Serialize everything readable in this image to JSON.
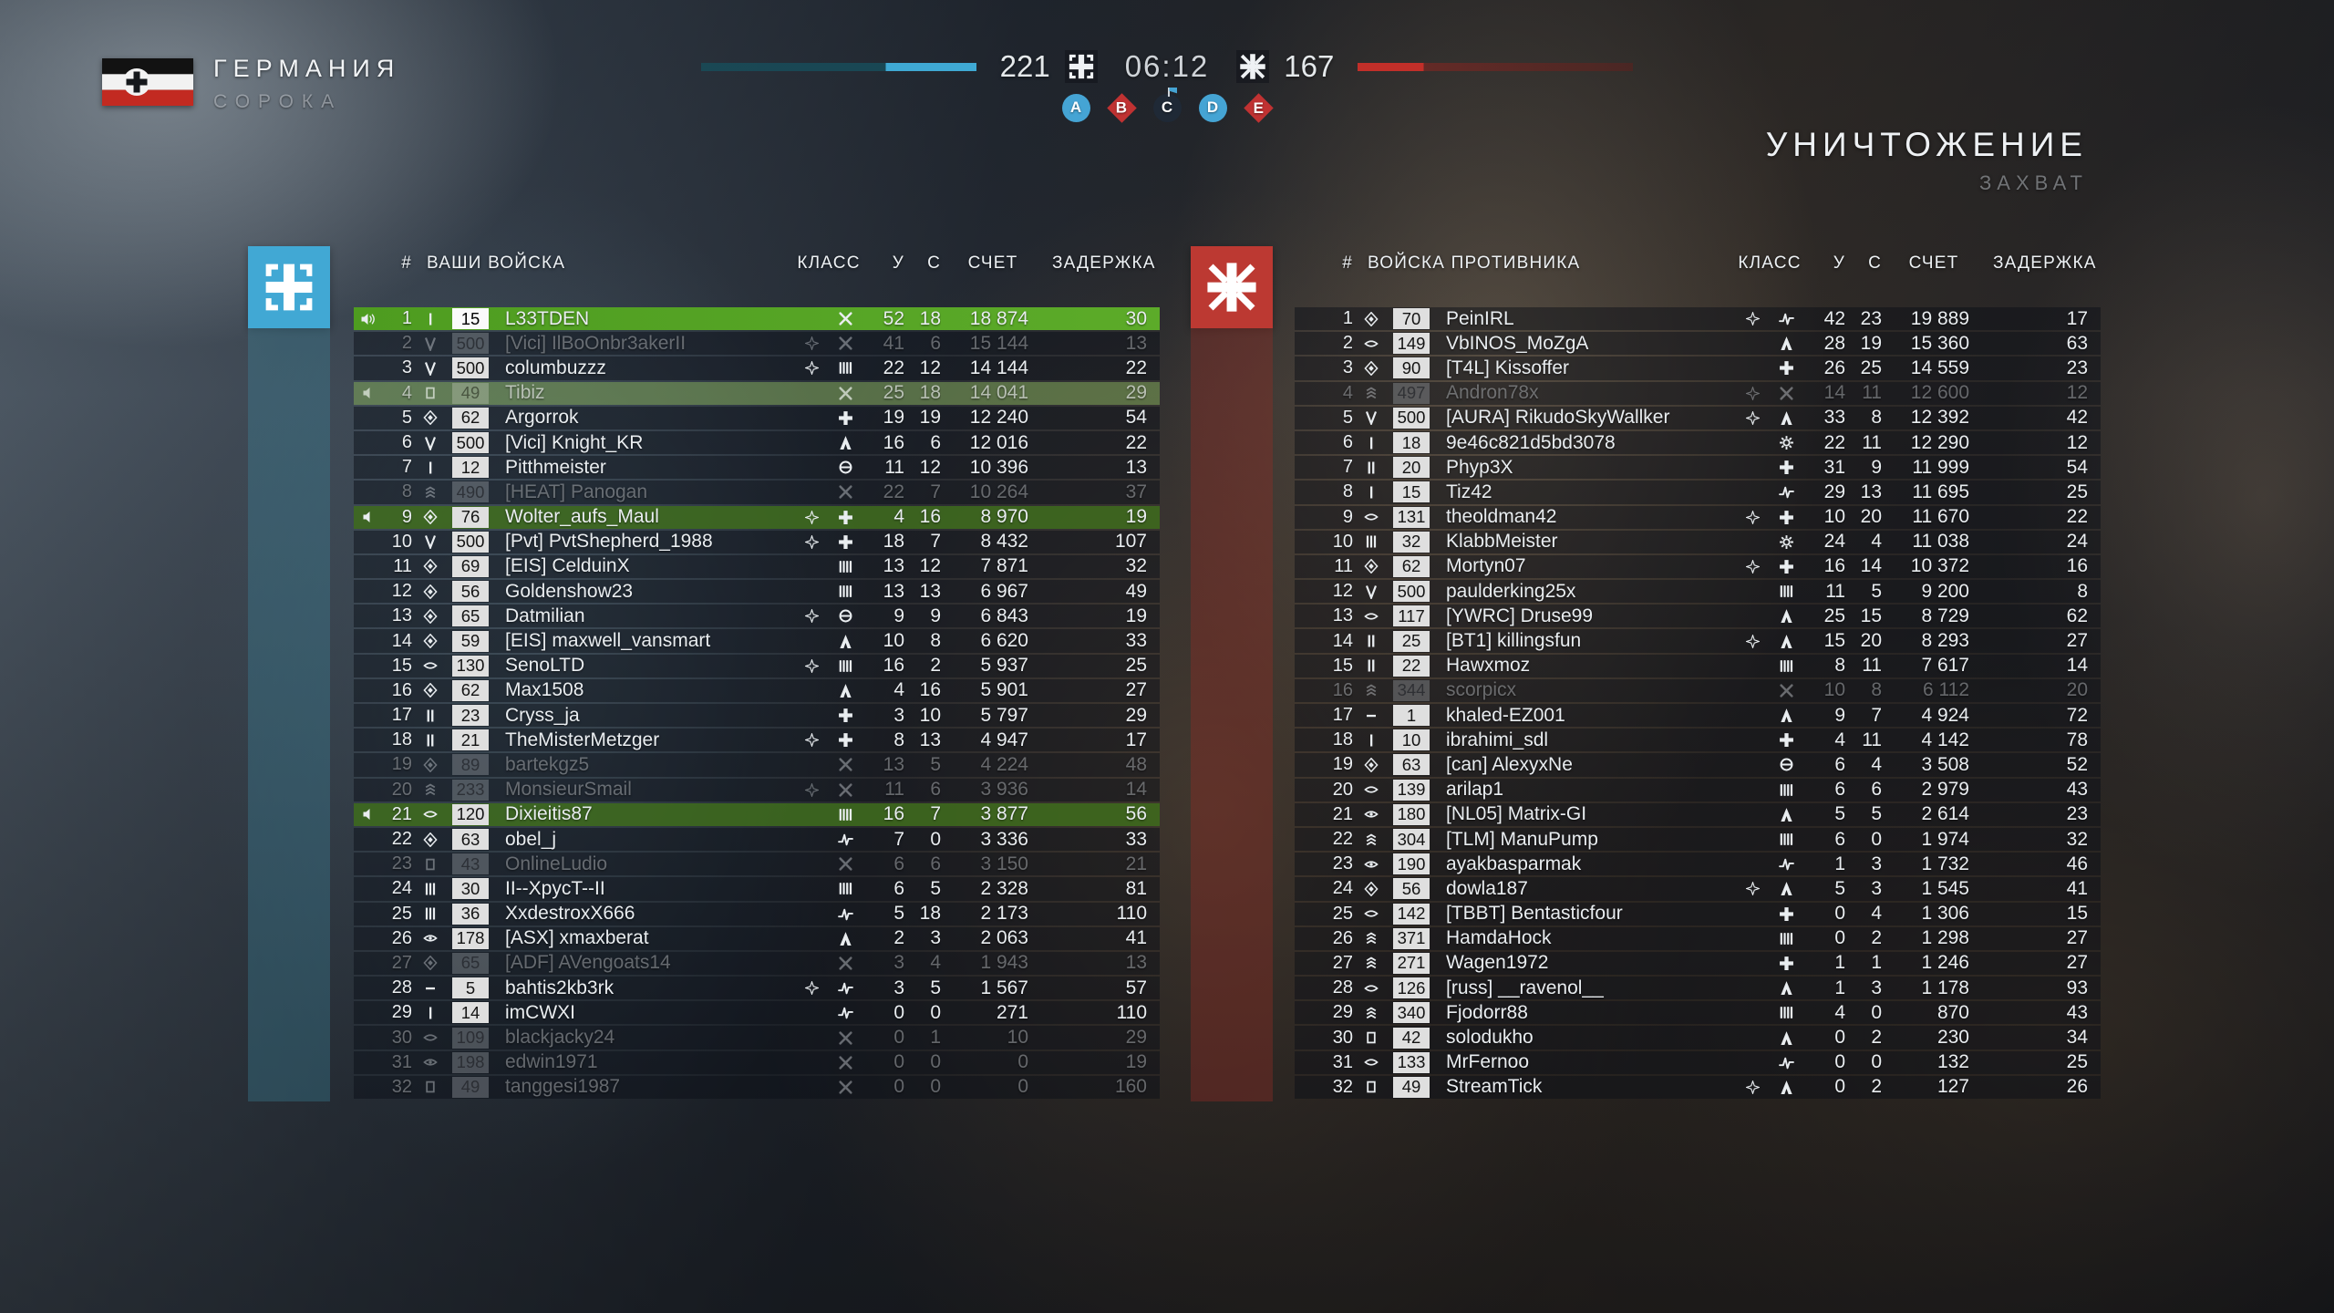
{
  "hud": {
    "team_name": "ГЕРМАНИЯ",
    "map_name": "СОРОКА",
    "score_left": "221",
    "score_right": "167",
    "time": "06:12",
    "mode_title": "УНИЧТОЖЕНИЕ",
    "mode_subtitle": "ЗАХВАТ",
    "flags": [
      {
        "label": "A",
        "shape": "circle",
        "color": "#45a4d4"
      },
      {
        "label": "B",
        "shape": "diamond",
        "color": "#c03232"
      },
      {
        "label": "C",
        "shape": "contested",
        "color": "#1f2936"
      },
      {
        "label": "D",
        "shape": "circle",
        "color": "#45a4d4"
      },
      {
        "label": "E",
        "shape": "diamond",
        "color": "#c03232"
      }
    ]
  },
  "colors": {
    "team_blue": "#41a8d4",
    "team_red": "#bc3932",
    "self_row_green": "#55a328",
    "squad_row_green": "#3e6c1c",
    "bar_blue": "#3fa9d4",
    "bar_red": "#c22f29"
  },
  "left": {
    "header": {
      "num": "#",
      "title": "ВАШИ ВОЙСКА",
      "cls": "КЛАСС",
      "kills": "У",
      "deaths": "С",
      "score": "СЧЕТ",
      "ping": "ЗАДЕРЖКА"
    },
    "players": [
      {
        "rank": 1,
        "speaker": "active",
        "ins": "bar1",
        "lvl": "15",
        "name": "L33TDEN",
        "leader": false,
        "cls": "scout",
        "k": 52,
        "d": 18,
        "score": "18 874",
        "ping": 30,
        "state": "self"
      },
      {
        "rank": 2,
        "ins": "vee",
        "lvl": "500",
        "name": "[Vici] IlBoOnbr3akerII",
        "leader": true,
        "cls": "scout",
        "k": 41,
        "d": 6,
        "score": "15 144",
        "ping": 13,
        "state": "dead"
      },
      {
        "rank": 3,
        "ins": "vee",
        "lvl": "500",
        "name": "columbuzzz",
        "leader": true,
        "cls": "support",
        "k": 22,
        "d": 12,
        "score": "14 144",
        "ping": 22,
        "state": ""
      },
      {
        "rank": 4,
        "speaker": "muted",
        "ins": "square",
        "lvl": "49",
        "name": "Tibiz",
        "leader": false,
        "cls": "scout",
        "k": 25,
        "d": 18,
        "score": "14 041",
        "ping": 29,
        "state": "squad-dead"
      },
      {
        "rank": 5,
        "ins": "diamond",
        "lvl": "62",
        "name": "Argorrok",
        "leader": false,
        "cls": "medic",
        "k": 19,
        "d": 19,
        "score": "12 240",
        "ping": 54,
        "state": ""
      },
      {
        "rank": 6,
        "ins": "vee",
        "lvl": "500",
        "name": "[Vici] Knight_KR",
        "leader": false,
        "cls": "assault",
        "k": 16,
        "d": 6,
        "score": "12 016",
        "ping": 22,
        "state": ""
      },
      {
        "rank": 7,
        "ins": "bar1",
        "lvl": "12",
        "name": "Pitthmeister",
        "leader": false,
        "cls": "tanker",
        "k": 11,
        "d": 12,
        "score": "10 396",
        "ping": 13,
        "state": ""
      },
      {
        "rank": 8,
        "ins": "chevrons",
        "lvl": "490",
        "name": "[HEAT] Panogan",
        "leader": false,
        "cls": "scout",
        "k": 22,
        "d": 7,
        "score": "10 264",
        "ping": 37,
        "state": "dead"
      },
      {
        "rank": 9,
        "speaker": "muted",
        "ins": "diamond",
        "lvl": "76",
        "name": "Wolter_aufs_Maul",
        "leader": true,
        "cls": "medic",
        "k": 4,
        "d": 16,
        "score": "8 970",
        "ping": 19,
        "state": "squad"
      },
      {
        "rank": 10,
        "ins": "vee",
        "lvl": "500",
        "name": "[Pvt] PvtShepherd_1988",
        "leader": true,
        "cls": "medic",
        "k": 18,
        "d": 7,
        "score": "8 432",
        "ping": 107,
        "state": ""
      },
      {
        "rank": 11,
        "ins": "diamond",
        "lvl": "69",
        "name": "[EIS] CelduinX",
        "leader": false,
        "cls": "support",
        "k": 13,
        "d": 12,
        "score": "7 871",
        "ping": 32,
        "state": ""
      },
      {
        "rank": 12,
        "ins": "diamond",
        "lvl": "56",
        "name": "Goldenshow23",
        "leader": false,
        "cls": "support",
        "k": 13,
        "d": 13,
        "score": "6 967",
        "ping": 49,
        "state": ""
      },
      {
        "rank": 13,
        "ins": "diamond",
        "lvl": "65",
        "name": "Datmilian",
        "leader": true,
        "cls": "tanker",
        "k": 9,
        "d": 9,
        "score": "6 843",
        "ping": 19,
        "state": ""
      },
      {
        "rank": 14,
        "ins": "diamond",
        "lvl": "59",
        "name": "[EIS] maxwell_vansmart",
        "leader": false,
        "cls": "assault",
        "k": 10,
        "d": 8,
        "score": "6 620",
        "ping": 33,
        "state": ""
      },
      {
        "rank": 15,
        "ins": "oval",
        "lvl": "130",
        "name": "SenoLTD",
        "leader": true,
        "cls": "support",
        "k": 16,
        "d": 2,
        "score": "5 937",
        "ping": 25,
        "state": ""
      },
      {
        "rank": 16,
        "ins": "diamond",
        "lvl": "62",
        "name": "Max1508",
        "leader": false,
        "cls": "assault",
        "k": 4,
        "d": 16,
        "score": "5 901",
        "ping": 27,
        "state": ""
      },
      {
        "rank": 17,
        "ins": "bar2",
        "lvl": "23",
        "name": "Cryss_ja",
        "leader": false,
        "cls": "medic",
        "k": 3,
        "d": 10,
        "score": "5 797",
        "ping": 29,
        "state": ""
      },
      {
        "rank": 18,
        "ins": "bar2",
        "lvl": "21",
        "name": "TheMisterMetzger",
        "leader": true,
        "cls": "medic",
        "k": 8,
        "d": 13,
        "score": "4 947",
        "ping": 17,
        "state": ""
      },
      {
        "rank": 19,
        "ins": "diamond",
        "lvl": "89",
        "name": "bartekgz5",
        "leader": false,
        "cls": "scout",
        "k": 13,
        "d": 5,
        "score": "4 224",
        "ping": 48,
        "state": "dead"
      },
      {
        "rank": 20,
        "ins": "chevrons",
        "lvl": "233",
        "name": "MonsieurSmail",
        "leader": true,
        "cls": "scout",
        "k": 11,
        "d": 6,
        "score": "3 936",
        "ping": 14,
        "state": "dead"
      },
      {
        "rank": 21,
        "speaker": "muted",
        "ins": "oval",
        "lvl": "120",
        "name": "Dixieitis87",
        "leader": false,
        "cls": "support",
        "k": 16,
        "d": 7,
        "score": "3 877",
        "ping": 56,
        "state": "squad"
      },
      {
        "rank": 22,
        "ins": "diamond",
        "lvl": "63",
        "name": "obel_j",
        "leader": false,
        "cls": "cavalry",
        "k": 7,
        "d": 0,
        "score": "3 336",
        "ping": 33,
        "state": ""
      },
      {
        "rank": 23,
        "ins": "square",
        "lvl": "43",
        "name": "OnlineLudio",
        "leader": false,
        "cls": "scout",
        "k": 6,
        "d": 6,
        "score": "3 150",
        "ping": 21,
        "state": "dead"
      },
      {
        "rank": 24,
        "ins": "bar3",
        "lvl": "30",
        "name": "II--XpycT--II",
        "leader": false,
        "cls": "support",
        "k": 6,
        "d": 5,
        "score": "2 328",
        "ping": 81,
        "state": ""
      },
      {
        "rank": 25,
        "ins": "bar3",
        "lvl": "36",
        "name": "XxdestroxX666",
        "leader": false,
        "cls": "cavalry",
        "k": 5,
        "d": 18,
        "score": "2 173",
        "ping": 110,
        "state": ""
      },
      {
        "rank": 26,
        "ins": "ovaldot",
        "lvl": "178",
        "name": "[ASX] xmaxberat",
        "leader": false,
        "cls": "assault",
        "k": 2,
        "d": 3,
        "score": "2 063",
        "ping": 41,
        "state": ""
      },
      {
        "rank": 27,
        "ins": "diamond",
        "lvl": "65",
        "name": "[ADF] AVengoats14",
        "leader": false,
        "cls": "scout",
        "k": 3,
        "d": 4,
        "score": "1 943",
        "ping": 13,
        "state": "dead"
      },
      {
        "rank": 28,
        "ins": "dash",
        "lvl": "5",
        "name": "bahtis2kb3rk",
        "leader": true,
        "cls": "cavalry",
        "k": 3,
        "d": 5,
        "score": "1 567",
        "ping": 57,
        "state": ""
      },
      {
        "rank": 29,
        "ins": "bar1",
        "lvl": "14",
        "name": "imCWXI",
        "leader": false,
        "cls": "cavalry",
        "k": 0,
        "d": 0,
        "score": "271",
        "ping": 110,
        "state": ""
      },
      {
        "rank": 30,
        "ins": "oval",
        "lvl": "109",
        "name": "blackjacky24",
        "leader": false,
        "cls": "scout",
        "k": 0,
        "d": 1,
        "score": "10",
        "ping": 29,
        "state": "dead"
      },
      {
        "rank": 31,
        "ins": "ovaldot",
        "lvl": "198",
        "name": "edwin1971",
        "leader": false,
        "cls": "scout",
        "k": 0,
        "d": 0,
        "score": "0",
        "ping": 19,
        "state": "dead"
      },
      {
        "rank": 32,
        "ins": "square",
        "lvl": "49",
        "name": "tanggesi1987",
        "leader": false,
        "cls": "scout",
        "k": 0,
        "d": 0,
        "score": "0",
        "ping": 160,
        "state": "dead"
      }
    ]
  },
  "right": {
    "header": {
      "num": "#",
      "title": "ВОЙСКА ПРОТИВНИКА",
      "cls": "КЛАСС",
      "kills": "У",
      "deaths": "С",
      "score": "СЧЕТ",
      "ping": "ЗАДЕРЖКА"
    },
    "players": [
      {
        "rank": 1,
        "ins": "diamond",
        "lvl": "70",
        "name": "PeinIRL",
        "leader": true,
        "cls": "cavalry",
        "k": 42,
        "d": 23,
        "score": "19 889",
        "ping": 17,
        "state": ""
      },
      {
        "rank": 2,
        "ins": "oval",
        "lvl": "149",
        "name": "VbINOS_MoZgA",
        "leader": false,
        "cls": "assault",
        "k": 28,
        "d": 19,
        "score": "15 360",
        "ping": 63,
        "state": ""
      },
      {
        "rank": 3,
        "ins": "diamond",
        "lvl": "90",
        "name": "[T4L] Kissoffer",
        "leader": false,
        "cls": "medic",
        "k": 26,
        "d": 25,
        "score": "14 559",
        "ping": 23,
        "state": ""
      },
      {
        "rank": 4,
        "ins": "chevrons",
        "lvl": "497",
        "name": "Andron78x",
        "leader": true,
        "cls": "scout",
        "k": 14,
        "d": 11,
        "score": "12 600",
        "ping": 12,
        "state": "dead"
      },
      {
        "rank": 5,
        "ins": "vee",
        "lvl": "500",
        "name": "[AURA] RikudoSkyWallker",
        "leader": true,
        "cls": "assault",
        "k": 33,
        "d": 8,
        "score": "12 392",
        "ping": 42,
        "state": ""
      },
      {
        "rank": 6,
        "ins": "bar1",
        "lvl": "18",
        "name": "9e46c821d5bd3078",
        "leader": false,
        "cls": "pilot",
        "k": 22,
        "d": 11,
        "score": "12 290",
        "ping": 12,
        "state": ""
      },
      {
        "rank": 7,
        "ins": "bar2",
        "lvl": "20",
        "name": "Phyp3X",
        "leader": false,
        "cls": "medic",
        "k": 31,
        "d": 9,
        "score": "11 999",
        "ping": 54,
        "state": ""
      },
      {
        "rank": 8,
        "ins": "bar1",
        "lvl": "15",
        "name": "Tiz42",
        "leader": false,
        "cls": "cavalry",
        "k": 29,
        "d": 13,
        "score": "11 695",
        "ping": 25,
        "state": ""
      },
      {
        "rank": 9,
        "ins": "oval",
        "lvl": "131",
        "name": "theoldman42",
        "leader": true,
        "cls": "medic",
        "k": 10,
        "d": 20,
        "score": "11 670",
        "ping": 22,
        "state": ""
      },
      {
        "rank": 10,
        "ins": "bar3",
        "lvl": "32",
        "name": "KlabbMeister",
        "leader": false,
        "cls": "pilot",
        "k": 24,
        "d": 4,
        "score": "11 038",
        "ping": 24,
        "state": ""
      },
      {
        "rank": 11,
        "ins": "diamond",
        "lvl": "62",
        "name": "Mortyn07",
        "leader": true,
        "cls": "medic",
        "k": 16,
        "d": 14,
        "score": "10 372",
        "ping": 16,
        "state": ""
      },
      {
        "rank": 12,
        "ins": "vee",
        "lvl": "500",
        "name": "paulderking25x",
        "leader": false,
        "cls": "support",
        "k": 11,
        "d": 5,
        "score": "9 200",
        "ping": 8,
        "state": ""
      },
      {
        "rank": 13,
        "ins": "oval",
        "lvl": "117",
        "name": "[YWRC] Druse99",
        "leader": false,
        "cls": "assault",
        "k": 25,
        "d": 15,
        "score": "8 729",
        "ping": 62,
        "state": ""
      },
      {
        "rank": 14,
        "ins": "bar2",
        "lvl": "25",
        "name": "[BT1] killingsfun",
        "leader": true,
        "cls": "assault",
        "k": 15,
        "d": 20,
        "score": "8 293",
        "ping": 27,
        "state": ""
      },
      {
        "rank": 15,
        "ins": "bar2",
        "lvl": "22",
        "name": "Hawxmoz",
        "leader": false,
        "cls": "support",
        "k": 8,
        "d": 11,
        "score": "7 617",
        "ping": 14,
        "state": ""
      },
      {
        "rank": 16,
        "ins": "chevrons",
        "lvl": "344",
        "name": "scorpicx",
        "leader": false,
        "cls": "scout",
        "k": 10,
        "d": 8,
        "score": "6 112",
        "ping": 20,
        "state": "dead"
      },
      {
        "rank": 17,
        "ins": "dash",
        "lvl": "1",
        "name": "khaled-EZ001",
        "leader": false,
        "cls": "assault",
        "k": 9,
        "d": 7,
        "score": "4 924",
        "ping": 72,
        "state": ""
      },
      {
        "rank": 18,
        "ins": "bar1",
        "lvl": "10",
        "name": "ibrahimi_sdl",
        "leader": false,
        "cls": "medic",
        "k": 4,
        "d": 11,
        "score": "4 142",
        "ping": 78,
        "state": ""
      },
      {
        "rank": 19,
        "ins": "diamond",
        "lvl": "63",
        "name": "[can] AlexyxNe",
        "leader": false,
        "cls": "tanker",
        "k": 6,
        "d": 4,
        "score": "3 508",
        "ping": 52,
        "state": ""
      },
      {
        "rank": 20,
        "ins": "oval",
        "lvl": "139",
        "name": "arilap1",
        "leader": false,
        "cls": "support",
        "k": 6,
        "d": 6,
        "score": "2 979",
        "ping": 43,
        "state": ""
      },
      {
        "rank": 21,
        "ins": "ovaldot",
        "lvl": "180",
        "name": "[NL05] Matrix-GI",
        "leader": false,
        "cls": "assault",
        "k": 5,
        "d": 5,
        "score": "2 614",
        "ping": 23,
        "state": ""
      },
      {
        "rank": 22,
        "ins": "chevrons",
        "lvl": "304",
        "name": "[TLM] ManuPump",
        "leader": false,
        "cls": "support",
        "k": 6,
        "d": 0,
        "score": "1 974",
        "ping": 32,
        "state": ""
      },
      {
        "rank": 23,
        "ins": "ovaldot",
        "lvl": "190",
        "name": "ayakbasparmak",
        "leader": false,
        "cls": "cavalry",
        "k": 1,
        "d": 3,
        "score": "1 732",
        "ping": 46,
        "state": ""
      },
      {
        "rank": 24,
        "ins": "diamond",
        "lvl": "56",
        "name": "dowla187",
        "leader": true,
        "cls": "assault",
        "k": 5,
        "d": 3,
        "score": "1 545",
        "ping": 41,
        "state": ""
      },
      {
        "rank": 25,
        "ins": "oval",
        "lvl": "142",
        "name": "[TBBT] Bentasticfour",
        "leader": false,
        "cls": "medic",
        "k": 0,
        "d": 4,
        "score": "1 306",
        "ping": 15,
        "state": ""
      },
      {
        "rank": 26,
        "ins": "chevrons",
        "lvl": "371",
        "name": "HamdaHock",
        "leader": false,
        "cls": "support",
        "k": 0,
        "d": 2,
        "score": "1 298",
        "ping": 27,
        "state": ""
      },
      {
        "rank": 27,
        "ins": "chevrons",
        "lvl": "271",
        "name": "Wagen1972",
        "leader": false,
        "cls": "medic",
        "k": 1,
        "d": 1,
        "score": "1 246",
        "ping": 27,
        "state": ""
      },
      {
        "rank": 28,
        "ins": "oval",
        "lvl": "126",
        "name": "[russ] __ravenol__",
        "leader": false,
        "cls": "assault",
        "k": 1,
        "d": 3,
        "score": "1 178",
        "ping": 93,
        "state": ""
      },
      {
        "rank": 29,
        "ins": "chevrons",
        "lvl": "340",
        "name": "Fjodorr88",
        "leader": false,
        "cls": "support",
        "k": 4,
        "d": 0,
        "score": "870",
        "ping": 43,
        "state": ""
      },
      {
        "rank": 30,
        "ins": "square",
        "lvl": "42",
        "name": "solodukho",
        "leader": false,
        "cls": "assault",
        "k": 0,
        "d": 2,
        "score": "230",
        "ping": 34,
        "state": ""
      },
      {
        "rank": 31,
        "ins": "oval",
        "lvl": "133",
        "name": "MrFernoo",
        "leader": false,
        "cls": "cavalry",
        "k": 0,
        "d": 0,
        "score": "132",
        "ping": 25,
        "state": ""
      },
      {
        "rank": 32,
        "ins": "square",
        "lvl": "49",
        "name": "StreamTick",
        "leader": true,
        "cls": "assault",
        "k": 0,
        "d": 2,
        "score": "127",
        "ping": 26,
        "state": ""
      }
    ]
  }
}
